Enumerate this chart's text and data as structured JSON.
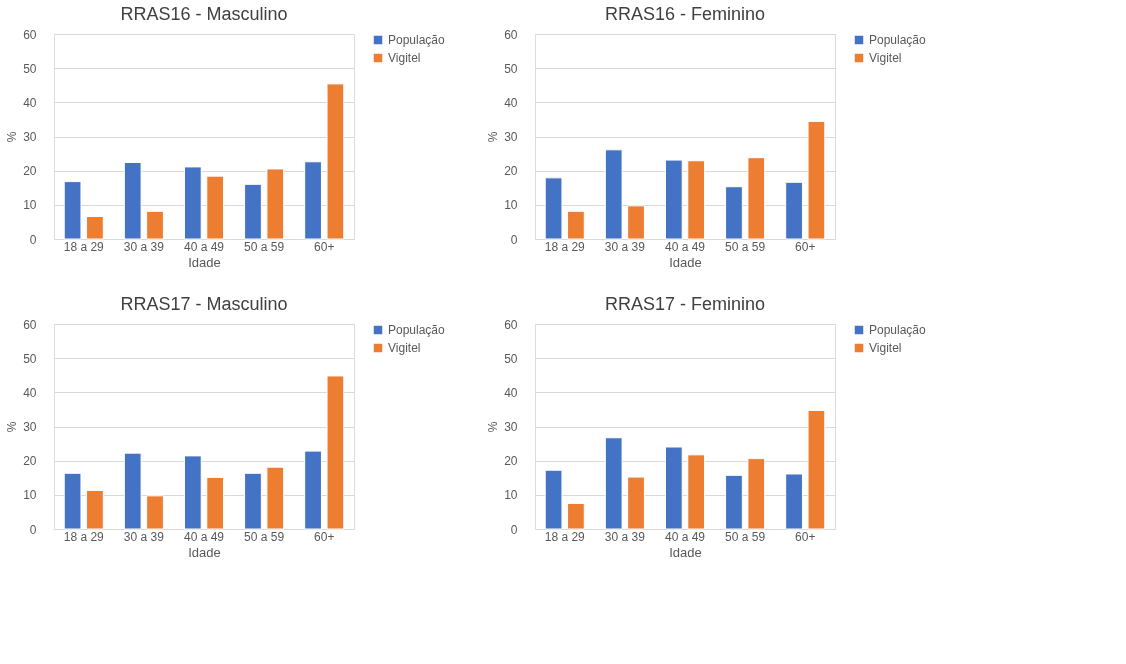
{
  "chart_data": [
    {
      "type": "bar",
      "title": "RRAS16 - Masculino",
      "xlabel": "Idade",
      "ylabel": "%",
      "categories": [
        "18 a 29",
        "30 a 39",
        "40 a 49",
        "50 a 59",
        "60+"
      ],
      "ylim": [
        0,
        60
      ],
      "yticks": [
        0,
        10,
        20,
        30,
        40,
        50,
        60
      ],
      "grid": "y",
      "legend": "right",
      "series": [
        {
          "name": "População",
          "color": "#4472c4",
          "values": [
            16.8,
            22.4,
            21.1,
            16.0,
            22.6
          ]
        },
        {
          "name": "Vigitel",
          "color": "#ed7d31",
          "values": [
            6.6,
            8.1,
            18.4,
            20.5,
            45.4
          ]
        }
      ]
    },
    {
      "type": "bar",
      "title": "RRAS16 - Feminino",
      "xlabel": "Idade",
      "ylabel": "%",
      "categories": [
        "18 a 29",
        "30 a 39",
        "40 a 49",
        "50 a 59",
        "60+"
      ],
      "ylim": [
        0,
        60
      ],
      "yticks": [
        0,
        10,
        20,
        30,
        40,
        50,
        60
      ],
      "grid": "y",
      "legend": "right",
      "series": [
        {
          "name": "População",
          "color": "#4472c4",
          "values": [
            17.9,
            26.1,
            23.1,
            15.3,
            16.6
          ]
        },
        {
          "name": "Vigitel",
          "color": "#ed7d31",
          "values": [
            8.1,
            9.7,
            22.9,
            23.8,
            34.4
          ]
        }
      ]
    },
    {
      "type": "bar",
      "title": "RRAS17 - Masculino",
      "xlabel": "Idade",
      "ylabel": "%",
      "categories": [
        "18 a 29",
        "30 a 39",
        "40 a 49",
        "50 a 59",
        "60+"
      ],
      "ylim": [
        0,
        60
      ],
      "yticks": [
        0,
        10,
        20,
        30,
        40,
        50,
        60
      ],
      "grid": "y",
      "legend": "right",
      "series": [
        {
          "name": "População",
          "color": "#4472c4",
          "values": [
            16.3,
            22.2,
            21.4,
            16.3,
            22.8
          ]
        },
        {
          "name": "Vigitel",
          "color": "#ed7d31",
          "values": [
            11.3,
            9.7,
            15.1,
            18.1,
            44.8
          ]
        }
      ]
    },
    {
      "type": "bar",
      "title": "RRAS17 - Feminino",
      "xlabel": "Idade",
      "ylabel": "%",
      "categories": [
        "18 a 29",
        "30 a 39",
        "40 a 49",
        "50 a 59",
        "60+"
      ],
      "ylim": [
        0,
        60
      ],
      "yticks": [
        0,
        10,
        20,
        30,
        40,
        50,
        60
      ],
      "grid": "y",
      "legend": "right",
      "series": [
        {
          "name": "População",
          "color": "#4472c4",
          "values": [
            17.2,
            26.7,
            24.0,
            15.7,
            16.1
          ]
        },
        {
          "name": "Vigitel",
          "color": "#ed7d31",
          "values": [
            7.5,
            15.2,
            21.7,
            20.6,
            34.7
          ]
        }
      ]
    }
  ]
}
